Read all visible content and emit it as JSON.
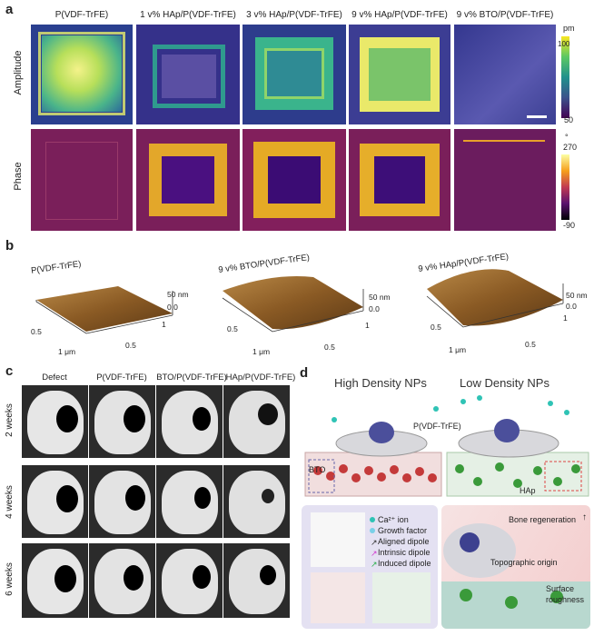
{
  "panel_labels": {
    "a": "a",
    "b": "b",
    "c": "c",
    "d": "d"
  },
  "panel_a": {
    "columns": [
      "P(VDF-TrFE)",
      "1 v% HAp/P(VDF-TrFE)",
      "3 v% HAp/P(VDF-TrFE)",
      "9 v% HAp/P(VDF-TrFE)",
      "9 v% BTO/P(VDF-TrFE)"
    ],
    "rows": [
      "Amplitude",
      "Phase"
    ],
    "amp_unit": "pm",
    "amp_max": "100",
    "amp_min": "50",
    "phase_unit": "°",
    "phase_max": "270",
    "phase_min": "-90"
  },
  "panel_b": {
    "titles": [
      "P(VDF-TrFE)",
      "9 v% BTO/P(VDF-TrFE)",
      "9 v% HAp/P(VDF-TrFE)"
    ],
    "z_top": "50 nm",
    "z_zero": "0.0",
    "axis_half": "0.5",
    "axis_one": "1",
    "axis_um": "1 μm"
  },
  "panel_c": {
    "columns": [
      "Defect",
      "P(VDF-TrFE)",
      "BTO/P(VDF-TrFE)",
      "HAp/P(VDF-TrFE)"
    ],
    "weeks": [
      "2 weeks",
      "4 weeks",
      "6 weeks"
    ]
  },
  "panel_d": {
    "high_title": "High Density NPs",
    "low_title": "Low Density NPs",
    "pvdf_label": "P(VDF-TrFE)",
    "bto_label": "BTO",
    "hap_label": "HAp",
    "legend": [
      "Ca²⁺ ion",
      "Growth factor",
      "Aligned dipole",
      "Intrinsic dipole",
      "Induced dipole"
    ],
    "bone_regen": "Bone regeneration",
    "topo": "Topographic origin",
    "surface": "Surface roughness"
  }
}
